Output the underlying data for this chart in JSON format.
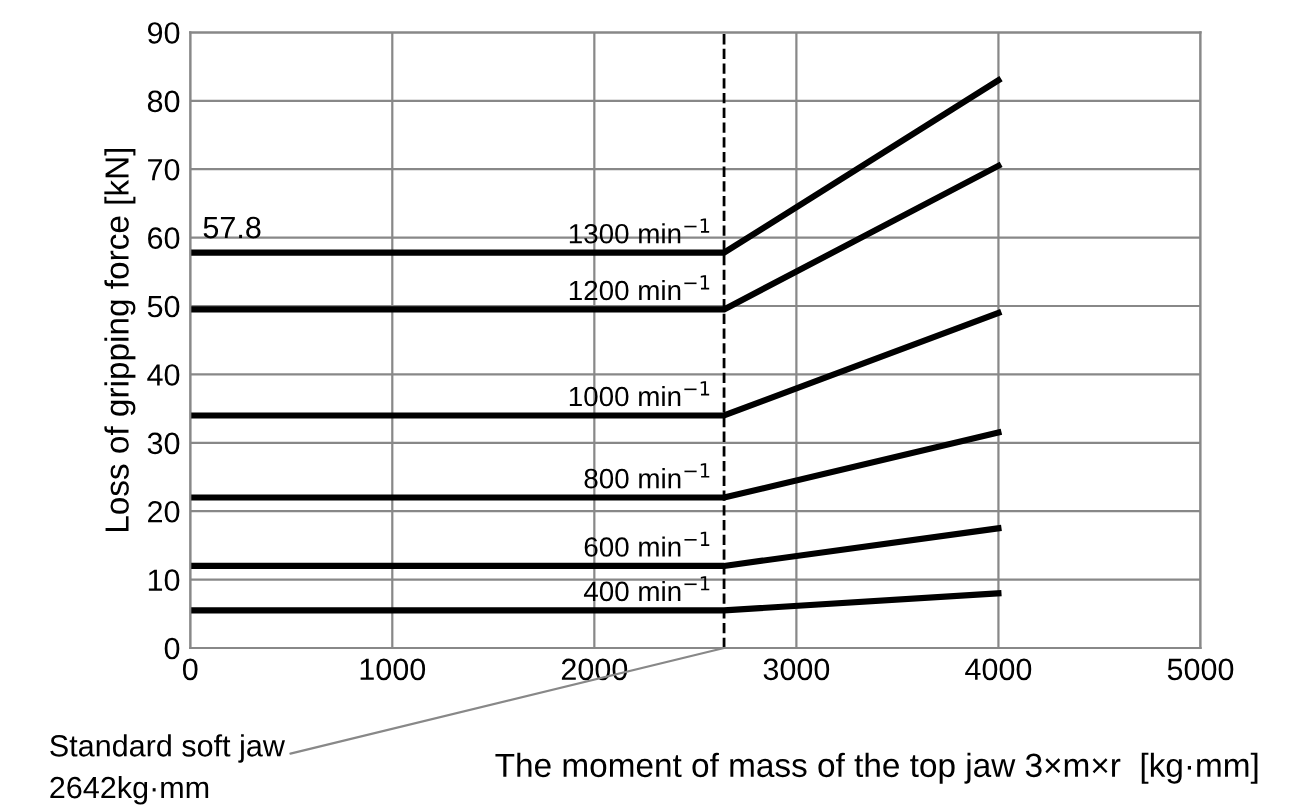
{
  "chart_data": {
    "type": "line",
    "xlabel": "The moment of mass of the top jaw 3×m×r  [kg·mm]",
    "ylabel": "Loss of gripping force [kN]",
    "xlim": [
      0,
      5000
    ],
    "xticks": [
      0,
      1000,
      2000,
      3000,
      4000,
      5000
    ],
    "ylim": [
      0,
      90
    ],
    "yticks": [
      0,
      10,
      20,
      30,
      40,
      50,
      60,
      70,
      80,
      90
    ],
    "grid": true,
    "marker": "none",
    "line_style": "solid",
    "series": [
      {
        "name": "1300 min$^{−1}$",
        "color": "#000000",
        "x": [
          0,
          2642,
          4000
        ],
        "values": [
          57.8,
          57.8,
          83
        ]
      },
      {
        "name": "1200 min$^{−1}$",
        "color": "#000000",
        "x": [
          0,
          2642,
          4000
        ],
        "values": [
          49.5,
          49.5,
          70.5
        ]
      },
      {
        "name": "1000 min$^{−1}$",
        "color": "#000000",
        "x": [
          0,
          2642,
          4000
        ],
        "values": [
          34,
          34,
          49
        ]
      },
      {
        "name": "800 min$^{−1}$",
        "color": "#000000",
        "x": [
          0,
          2642,
          4000
        ],
        "values": [
          22,
          22,
          31.5
        ]
      },
      {
        "name": "600 min$^{−1}$",
        "color": "#000000",
        "x": [
          0,
          2642,
          4000
        ],
        "values": [
          12,
          12,
          17.5
        ]
      },
      {
        "name": "400 min$^{−1}$",
        "color": "#000000",
        "x": [
          0,
          2642,
          4000
        ],
        "values": [
          5.5,
          5.5,
          8
        ]
      }
    ],
    "annotations": [
      {
        "text": "57.8",
        "x": 0,
        "y": 57.8
      }
    ],
    "ref_lines": [
      {
        "axis": "x",
        "value": 2642,
        "label": "Standard soft jaw\n2642kg·mm",
        "color": "#000000",
        "line_style": "dashed"
      }
    ]
  }
}
